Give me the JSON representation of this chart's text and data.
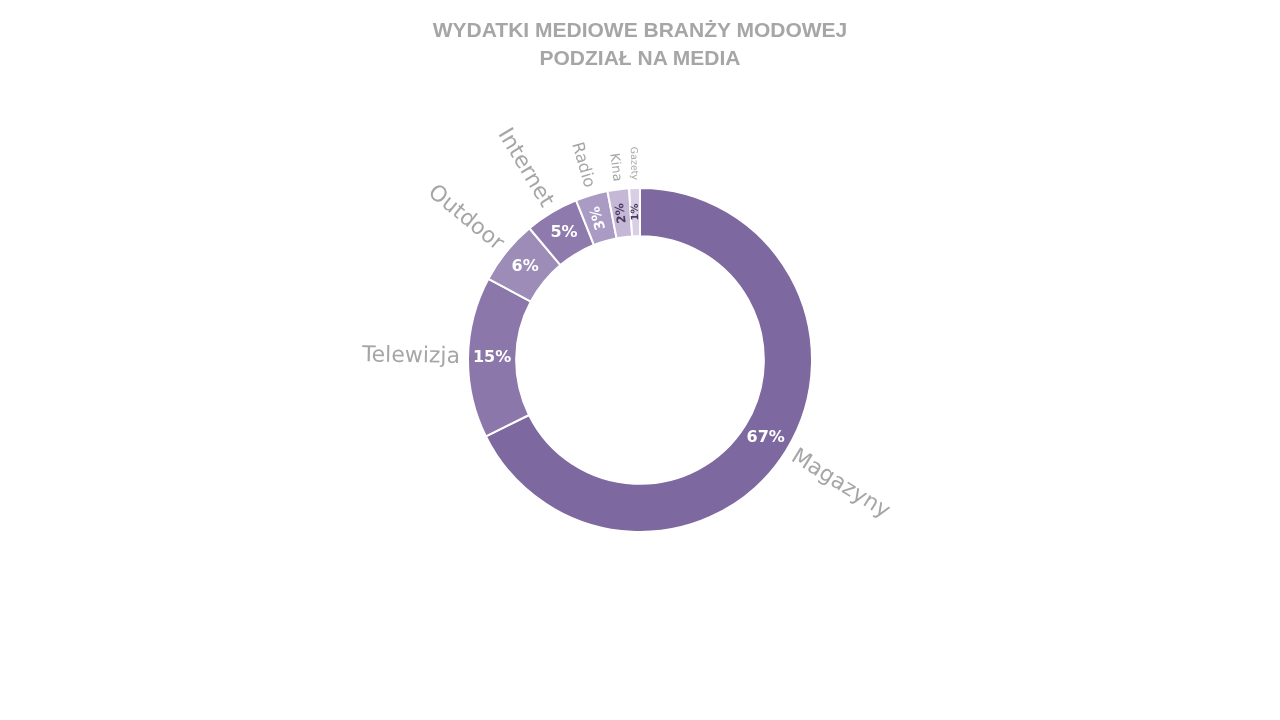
{
  "chart_data": {
    "type": "donut",
    "title": "WYDATKI MEDIOWE BRANŻY MODOWEJ",
    "subtitle": "PODZIAŁ NA MEDIA",
    "categories": [
      "Magazyny",
      "Telewizja",
      "Outdoor",
      "Internet",
      "Radio",
      "Kina",
      "Gazety"
    ],
    "values": [
      67,
      15,
      6,
      5,
      3,
      2,
      1
    ],
    "value_labels": [
      "67%",
      "15%",
      "6%",
      "5%",
      "3%",
      "2%",
      "1%"
    ],
    "colors": [
      "#7d68a0",
      "#8c77ab",
      "#9d8bb8",
      "#8e7aad",
      "#aa9bc4",
      "#c4b8d6",
      "#d8cfe4"
    ],
    "legend": false
  }
}
